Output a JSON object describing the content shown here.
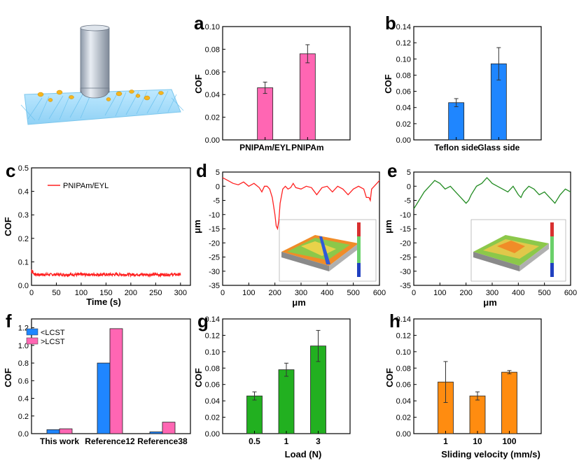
{
  "colors": {
    "pink": "#ff66b3",
    "blue": "#1f86ff",
    "green": "#22b020",
    "orange": "#ff8c10",
    "red": "#ff2020",
    "darkgreen": "#228b22"
  },
  "chart_data": [
    {
      "id": "a",
      "type": "bar",
      "panel_label": "a",
      "ylabel": "COF",
      "ylim": [
        0,
        0.1
      ],
      "yticks": [
        "0.00",
        "0.02",
        "0.04",
        "0.06",
        "0.08",
        "0.10"
      ],
      "categories": [
        "PNIPAm/EYL",
        "PNIPAm"
      ],
      "values": [
        0.046,
        0.076
      ],
      "errors": [
        0.005,
        0.008
      ],
      "color": "pink"
    },
    {
      "id": "b",
      "type": "bar",
      "panel_label": "b",
      "ylabel": "COF",
      "ylim": [
        0,
        0.14
      ],
      "yticks": [
        "0.00",
        "0.02",
        "0.04",
        "0.06",
        "0.08",
        "0.10",
        "0.12",
        "0.14"
      ],
      "categories": [
        "Teflon side",
        "Glass side"
      ],
      "values": [
        0.046,
        0.094
      ],
      "errors": [
        0.005,
        0.02
      ],
      "color": "blue"
    },
    {
      "id": "c",
      "type": "line",
      "panel_label": "c",
      "ylabel": "COF",
      "xlabel": "Time (s)",
      "xlim": [
        0,
        320
      ],
      "ylim": [
        0,
        0.5
      ],
      "xticks": [
        "0",
        "50",
        "100",
        "150",
        "200",
        "250",
        "300"
      ],
      "yticks": [
        "0.0",
        "0.1",
        "0.2",
        "0.3",
        "0.4",
        "0.5"
      ],
      "series": [
        {
          "name": "PNIPAm/EYL",
          "x_range": [
            0,
            300
          ],
          "mean": 0.046,
          "start_peak": 0.085,
          "color": "red"
        }
      ]
    },
    {
      "id": "d",
      "type": "line",
      "panel_label": "d",
      "ylabel": "μm",
      "xlabel": "μm",
      "xlim": [
        0,
        600
      ],
      "ylim": [
        -35,
        5
      ],
      "xticks": [
        "0",
        "100",
        "200",
        "300",
        "400",
        "500",
        "600"
      ],
      "yticks": [
        "5",
        "0",
        "-5",
        "-10",
        "-15",
        "-20",
        "-25",
        "-30",
        "-35"
      ],
      "series": [
        {
          "name": "profile",
          "color": "red",
          "x": [
            0,
            20,
            40,
            60,
            80,
            100,
            120,
            140,
            150,
            160,
            170,
            180,
            190,
            200,
            205,
            210,
            215,
            220,
            230,
            240,
            250,
            260,
            270,
            280,
            300,
            320,
            340,
            360,
            380,
            400,
            420,
            440,
            460,
            480,
            500,
            520,
            540,
            550,
            560,
            565,
            570,
            580,
            590,
            600
          ],
          "y": [
            3,
            2,
            1,
            0.5,
            1.5,
            0,
            1,
            -0.5,
            -2,
            0,
            0,
            -1,
            -4,
            -10,
            -14,
            -15,
            -12,
            -6,
            -1,
            0,
            -1,
            -0.5,
            1,
            -0.5,
            -1,
            0,
            -0.5,
            -3,
            -0.5,
            0,
            -2,
            0,
            -1,
            -3,
            -1,
            0,
            -1,
            -4,
            -4,
            -5,
            -1,
            0,
            1,
            2
          ]
        }
      ]
    },
    {
      "id": "e",
      "type": "line",
      "panel_label": "e",
      "ylabel": "μm",
      "xlabel": "μm",
      "xlim": [
        0,
        600
      ],
      "ylim": [
        -35,
        5
      ],
      "xticks": [
        "0",
        "100",
        "200",
        "300",
        "400",
        "500",
        "600"
      ],
      "yticks": [
        "5",
        "0",
        "-5",
        "-10",
        "-15",
        "-20",
        "-25",
        "-30",
        "-35"
      ],
      "series": [
        {
          "name": "profile",
          "color": "darkgreen",
          "x": [
            0,
            20,
            40,
            60,
            80,
            100,
            120,
            140,
            160,
            180,
            200,
            210,
            220,
            240,
            260,
            280,
            290,
            300,
            320,
            340,
            360,
            380,
            400,
            410,
            420,
            440,
            460,
            480,
            500,
            520,
            540,
            560,
            580,
            600
          ],
          "y": [
            -8,
            -5,
            -2,
            0,
            2,
            1,
            -1,
            0,
            -2,
            -4,
            -6,
            -5,
            -3,
            0,
            1,
            3,
            2,
            1,
            0,
            -1,
            -2,
            0,
            -3,
            -4,
            -2,
            0,
            -1,
            -3,
            -2,
            -4,
            -6,
            -3,
            -1,
            -2
          ]
        }
      ]
    },
    {
      "id": "f",
      "type": "bar",
      "panel_label": "f",
      "ylabel": "COF",
      "ylim": [
        0,
        1.3
      ],
      "yticks": [
        "0.0",
        "0.2",
        "0.4",
        "0.6",
        "0.8",
        "1.0",
        "1.2"
      ],
      "categories": [
        "This work",
        "Reference12",
        "Reference38"
      ],
      "series": [
        {
          "name": "<LCST",
          "values": [
            0.045,
            0.8,
            0.02
          ],
          "color": "blue"
        },
        {
          "name": ">LCST",
          "values": [
            0.055,
            1.19,
            0.13
          ],
          "color": "pink"
        }
      ]
    },
    {
      "id": "g",
      "type": "bar",
      "panel_label": "g",
      "ylabel": "COF",
      "xlabel": "Load (N)",
      "ylim": [
        0,
        0.14
      ],
      "yticks": [
        "0.00",
        "0.02",
        "0.04",
        "0.06",
        "0.08",
        "0.10",
        "0.12",
        "0.14"
      ],
      "categories": [
        "0.5",
        "1",
        "3"
      ],
      "values": [
        0.046,
        0.078,
        0.107
      ],
      "errors": [
        0.005,
        0.008,
        0.019
      ],
      "color": "green"
    },
    {
      "id": "h",
      "type": "bar",
      "panel_label": "h",
      "ylabel": "COF",
      "xlabel": "Sliding velocity  (mm/s)",
      "ylim": [
        0,
        0.14
      ],
      "yticks": [
        "0.00",
        "0.02",
        "0.04",
        "0.06",
        "0.08",
        "0.10",
        "0.12",
        "0.14"
      ],
      "categories": [
        "1",
        "10",
        "100"
      ],
      "values": [
        0.063,
        0.046,
        0.075
      ],
      "errors": [
        0.025,
        0.005,
        0.002
      ],
      "color": "orange"
    }
  ]
}
